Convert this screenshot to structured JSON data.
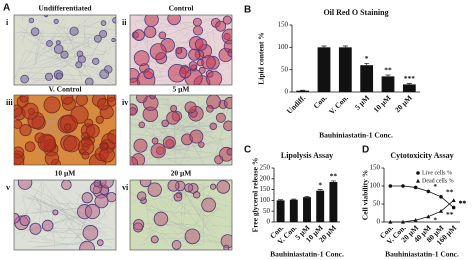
{
  "panel_labels": [
    "A",
    "B",
    "C",
    "D"
  ],
  "micrographs": [
    {
      "numeral": "i",
      "caption": "Undifferentiated"
    },
    {
      "numeral": "ii",
      "caption": "Control"
    },
    {
      "numeral": "iii",
      "caption": "V. Control"
    },
    {
      "numeral": "iv",
      "caption": "5 µM"
    },
    {
      "numeral": "v",
      "caption": "10 µM"
    },
    {
      "numeral": "vi",
      "caption": "20 µM"
    }
  ],
  "chart_data": [
    {
      "type": "bar",
      "title": "Oil Red O Staining",
      "ylabel": "Lipid content %",
      "xlabel": "Bauhiniastatin-1 Conc.",
      "categories": [
        "Undiff.",
        "Con.",
        "V. Con.",
        "5 µM",
        "10 µM",
        "20 µM"
      ],
      "values": [
        3,
        100,
        100,
        60,
        35,
        17
      ],
      "errors": [
        1,
        3,
        3,
        4,
        3,
        2
      ],
      "annotations": [
        null,
        null,
        null,
        "*",
        "**",
        "***"
      ],
      "color": "#111111",
      "ylim": [
        0,
        150
      ],
      "yticks": [
        0,
        50,
        100,
        150
      ]
    },
    {
      "type": "bar",
      "title": "Lipolysis Assay",
      "ylabel": "Free glycerol release %",
      "xlabel": "Bauhiniastatin-1 Conc.",
      "categories": [
        "Con.",
        "V. Con.",
        "5 µM",
        "10 µM",
        "20 µM"
      ],
      "values": [
        100,
        103,
        115,
        145,
        185
      ],
      "errors": [
        3,
        3,
        4,
        5,
        5
      ],
      "annotations": [
        null,
        null,
        null,
        "*",
        "**"
      ],
      "color": "#111111",
      "ylim": [
        0,
        250
      ],
      "yticks": [
        0,
        50,
        100,
        150,
        200,
        250
      ]
    },
    {
      "type": "line",
      "title": "Cytotoxicity Assay",
      "ylabel": "Cell viability %",
      "xlabel": "Bauhiniastatin-1 Conc.",
      "categories": [
        "Con.",
        "V. Con.",
        "20 µM",
        "40 µM",
        "80 µM",
        "160 µM"
      ],
      "series": [
        {
          "name": "Live cells %",
          "color": "#111111",
          "marker": "circle",
          "values": [
            100,
            100,
            96,
            85,
            70,
            40
          ],
          "annotations": [
            null,
            null,
            null,
            "*",
            "**",
            "**"
          ]
        },
        {
          "name": "Dead cells %",
          "color": "#111111",
          "marker": "triangle",
          "values": [
            0,
            0,
            5,
            15,
            30,
            60
          ],
          "annotations": [
            null,
            null,
            null,
            "*",
            "**",
            "**"
          ]
        }
      ],
      "legend": "upper right",
      "ylim": [
        0,
        150
      ],
      "yticks": [
        0,
        50,
        100,
        150
      ]
    }
  ]
}
